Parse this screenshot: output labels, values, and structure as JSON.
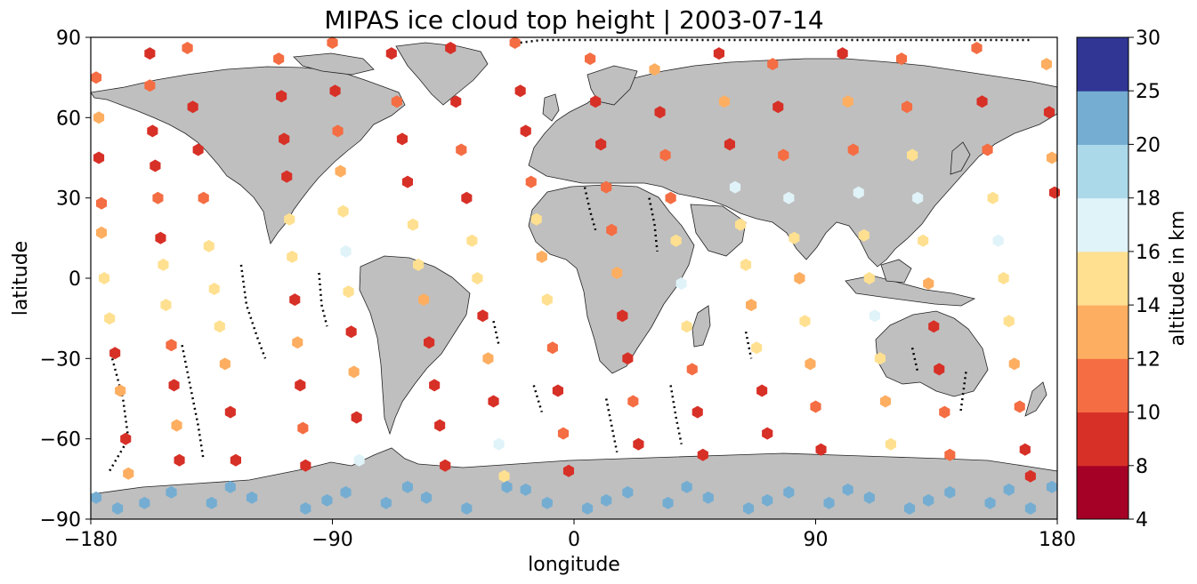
{
  "chart_data": {
    "type": "scatter",
    "title": "MIPAS ice cloud top height | 2003-07-14",
    "xlabel": "longitude",
    "ylabel": "latitude",
    "xlim": [
      -180,
      180
    ],
    "ylim": [
      -90,
      90
    ],
    "xticks": [
      -180,
      -90,
      0,
      90,
      180
    ],
    "yticks": [
      -90,
      -60,
      -30,
      0,
      30,
      60,
      90
    ],
    "xtick_labels": [
      "−180",
      "−90",
      "0",
      "90",
      "180"
    ],
    "ytick_labels": [
      "−90",
      "−60",
      "−30",
      "0",
      "30",
      "60",
      "90"
    ],
    "map_background": "world land masses in grey (#bfbfbf) with coastlines",
    "colorbar": {
      "label": "altitude in km",
      "boundaries": [
        4,
        8,
        10,
        12,
        14,
        16,
        18,
        20,
        25,
        30
      ],
      "tick_labels": [
        "4",
        "8",
        "10",
        "12",
        "14",
        "16",
        "18",
        "20",
        "25",
        "30"
      ],
      "colors": [
        "#a50026",
        "#d73027",
        "#f46d43",
        "#fdae61",
        "#fee090",
        "#e0f3f8",
        "#abd9e9",
        "#74add1",
        "#313695"
      ]
    },
    "series": [
      {
        "kind": "cloud_top_hexagons",
        "points": [
          [
            -178,
            75,
            11
          ],
          [
            -177,
            60,
            12
          ],
          [
            -177,
            45,
            8
          ],
          [
            -176,
            28,
            11
          ],
          [
            -176,
            17,
            12
          ],
          [
            -175,
            0,
            15
          ],
          [
            -173,
            -15,
            15
          ],
          [
            -171,
            -28,
            8
          ],
          [
            -169,
            -42,
            13
          ],
          [
            -167,
            -60,
            8
          ],
          [
            -166,
            -73,
            12
          ],
          [
            -158,
            84,
            8
          ],
          [
            -158,
            72,
            11
          ],
          [
            -157,
            55,
            8
          ],
          [
            -156,
            42,
            9
          ],
          [
            -155,
            30,
            11
          ],
          [
            -154,
            15,
            8
          ],
          [
            -153,
            5,
            15
          ],
          [
            -152,
            -10,
            14
          ],
          [
            -150,
            -25,
            10
          ],
          [
            -149,
            -40,
            9
          ],
          [
            -148,
            -55,
            12
          ],
          [
            -147,
            -68,
            8
          ],
          [
            -144,
            86,
            11
          ],
          [
            -142,
            64,
            8
          ],
          [
            -140,
            48,
            9
          ],
          [
            -138,
            30,
            11
          ],
          [
            -136,
            12,
            15
          ],
          [
            -134,
            -4,
            15
          ],
          [
            -132,
            -18,
            14
          ],
          [
            -130,
            -32,
            12
          ],
          [
            -128,
            -50,
            9
          ],
          [
            -126,
            -68,
            8
          ],
          [
            -110,
            82,
            11
          ],
          [
            -109,
            68,
            8
          ],
          [
            -108,
            52,
            9
          ],
          [
            -107,
            38,
            8
          ],
          [
            -106,
            22,
            15
          ],
          [
            -105,
            8,
            15
          ],
          [
            -104,
            -8,
            8
          ],
          [
            -103,
            -24,
            12
          ],
          [
            -102,
            -40,
            9
          ],
          [
            -101,
            -56,
            10
          ],
          [
            -100,
            -70,
            8
          ],
          [
            -90,
            88,
            10
          ],
          [
            -89,
            70,
            8
          ],
          [
            -88,
            55,
            11
          ],
          [
            -87,
            40,
            12
          ],
          [
            -86,
            25,
            15
          ],
          [
            -85,
            10,
            17
          ],
          [
            -84,
            -5,
            14
          ],
          [
            -83,
            -20,
            8
          ],
          [
            -82,
            -35,
            12
          ],
          [
            -81,
            -52,
            9
          ],
          [
            -80,
            -68,
            16
          ],
          [
            -68,
            84,
            8
          ],
          [
            -66,
            66,
            11
          ],
          [
            -64,
            52,
            8
          ],
          [
            -62,
            36,
            9
          ],
          [
            -60,
            20,
            15
          ],
          [
            -58,
            5,
            15
          ],
          [
            -56,
            -8,
            13
          ],
          [
            -54,
            -24,
            8
          ],
          [
            -52,
            -40,
            8
          ],
          [
            -50,
            -55,
            9
          ],
          [
            -48,
            -70,
            8
          ],
          [
            -46,
            86,
            8
          ],
          [
            -44,
            66,
            9
          ],
          [
            -42,
            48,
            10
          ],
          [
            -40,
            30,
            8
          ],
          [
            -38,
            14,
            15
          ],
          [
            -36,
            0,
            14
          ],
          [
            -34,
            -14,
            8
          ],
          [
            -32,
            -30,
            12
          ],
          [
            -30,
            -46,
            9
          ],
          [
            -28,
            -62,
            16
          ],
          [
            -26,
            -74,
            15
          ],
          [
            -22,
            88,
            11
          ],
          [
            -20,
            70,
            9
          ],
          [
            -18,
            55,
            8
          ],
          [
            -16,
            36,
            10
          ],
          [
            -14,
            22,
            15
          ],
          [
            -12,
            8,
            12
          ],
          [
            -10,
            -8,
            14
          ],
          [
            -8,
            -26,
            10
          ],
          [
            -6,
            -42,
            8
          ],
          [
            -4,
            -58,
            10
          ],
          [
            -2,
            -72,
            8
          ],
          [
            6,
            82,
            11
          ],
          [
            8,
            66,
            8
          ],
          [
            10,
            50,
            9
          ],
          [
            12,
            34,
            10
          ],
          [
            14,
            18,
            11
          ],
          [
            16,
            2,
            12
          ],
          [
            18,
            -14,
            9
          ],
          [
            20,
            -30,
            8
          ],
          [
            22,
            -46,
            10
          ],
          [
            24,
            -62,
            8
          ],
          [
            30,
            78,
            12
          ],
          [
            32,
            62,
            8
          ],
          [
            34,
            46,
            10
          ],
          [
            36,
            30,
            11
          ],
          [
            38,
            14,
            15
          ],
          [
            40,
            -2,
            16
          ],
          [
            42,
            -18,
            14
          ],
          [
            44,
            -34,
            11
          ],
          [
            46,
            -50,
            8
          ],
          [
            48,
            -66,
            9
          ],
          [
            54,
            84,
            9
          ],
          [
            56,
            66,
            12
          ],
          [
            58,
            50,
            9
          ],
          [
            60,
            34,
            17
          ],
          [
            62,
            20,
            15
          ],
          [
            64,
            5,
            14
          ],
          [
            66,
            -10,
            13
          ],
          [
            68,
            -26,
            14
          ],
          [
            70,
            -42,
            9
          ],
          [
            72,
            -58,
            8
          ],
          [
            74,
            80,
            10
          ],
          [
            76,
            64,
            8
          ],
          [
            78,
            46,
            10
          ],
          [
            80,
            30,
            16
          ],
          [
            82,
            15,
            15
          ],
          [
            84,
            0,
            12
          ],
          [
            86,
            -16,
            15
          ],
          [
            88,
            -32,
            13
          ],
          [
            90,
            -48,
            10
          ],
          [
            92,
            -64,
            9
          ],
          [
            100,
            84,
            8
          ],
          [
            102,
            66,
            12
          ],
          [
            104,
            48,
            10
          ],
          [
            106,
            32,
            17
          ],
          [
            108,
            16,
            14
          ],
          [
            110,
            0,
            15
          ],
          [
            112,
            -14,
            16
          ],
          [
            114,
            -30,
            14
          ],
          [
            116,
            -46,
            12
          ],
          [
            118,
            -62,
            15
          ],
          [
            122,
            82,
            11
          ],
          [
            124,
            64,
            10
          ],
          [
            126,
            46,
            15
          ],
          [
            128,
            30,
            16
          ],
          [
            130,
            14,
            15
          ],
          [
            132,
            -2,
            12
          ],
          [
            134,
            -18,
            8
          ],
          [
            136,
            -34,
            8
          ],
          [
            138,
            -50,
            10
          ],
          [
            140,
            -66,
            11
          ],
          [
            150,
            86,
            11
          ],
          [
            152,
            66,
            8
          ],
          [
            154,
            48,
            11
          ],
          [
            156,
            30,
            14
          ],
          [
            158,
            14,
            16
          ],
          [
            160,
            0,
            15
          ],
          [
            162,
            -16,
            14
          ],
          [
            164,
            -32,
            12
          ],
          [
            166,
            -48,
            10
          ],
          [
            168,
            -64,
            8
          ],
          [
            170,
            -74,
            9
          ],
          [
            176,
            80,
            12
          ],
          [
            177,
            62,
            8
          ],
          [
            178,
            45,
            12
          ],
          [
            179,
            32,
            8
          ]
        ]
      },
      {
        "kind": "antarctic_high_clouds",
        "points": [
          [
            -178,
            -82,
            22
          ],
          [
            -170,
            -86,
            22
          ],
          [
            -150,
            -80,
            22
          ],
          [
            -135,
            -84,
            22
          ],
          [
            -120,
            -82,
            22
          ],
          [
            -100,
            -86,
            22
          ],
          [
            -85,
            -80,
            22
          ],
          [
            -70,
            -84,
            22
          ],
          [
            -55,
            -82,
            22
          ],
          [
            -40,
            -86,
            22
          ],
          [
            -25,
            -78,
            22
          ],
          [
            -10,
            -84,
            22
          ],
          [
            5,
            -86,
            22
          ],
          [
            20,
            -80,
            22
          ],
          [
            35,
            -84,
            22
          ],
          [
            50,
            -82,
            22
          ],
          [
            65,
            -86,
            22
          ],
          [
            80,
            -80,
            22
          ],
          [
            95,
            -84,
            22
          ],
          [
            110,
            -82,
            22
          ],
          [
            125,
            -86,
            22
          ],
          [
            140,
            -80,
            22
          ],
          [
            155,
            -84,
            22
          ],
          [
            170,
            -86,
            22
          ],
          [
            -160,
            -84,
            22
          ],
          [
            -128,
            -78,
            22
          ],
          [
            -92,
            -83,
            22
          ],
          [
            -62,
            -78,
            22
          ],
          [
            -18,
            -79,
            22
          ],
          [
            12,
            -83,
            22
          ],
          [
            42,
            -78,
            22
          ],
          [
            72,
            -83,
            22
          ],
          [
            102,
            -79,
            22
          ],
          [
            132,
            -83,
            22
          ],
          [
            162,
            -79,
            22
          ],
          [
            178,
            -78,
            22
          ]
        ]
      },
      {
        "kind": "no_cloud_tracks",
        "paths": [
          [
            [
              -172,
              -30
            ],
            [
              -168,
              -45
            ],
            [
              -166,
              -60
            ],
            [
              -173,
              -72
            ]
          ],
          [
            [
              -146,
              -25
            ],
            [
              -143,
              -40
            ],
            [
              -140,
              -55
            ],
            [
              -138,
              -68
            ]
          ],
          [
            [
              -124,
              5
            ],
            [
              -122,
              -10
            ],
            [
              -118,
              -22
            ],
            [
              -115,
              -30
            ]
          ],
          [
            [
              -95,
              2
            ],
            [
              -94,
              -10
            ],
            [
              -92,
              -18
            ]
          ],
          [
            [
              -30,
              -16
            ],
            [
              -28,
              -25
            ]
          ],
          [
            [
              -15,
              -40
            ],
            [
              -12,
              -50
            ]
          ],
          [
            [
              4,
              34
            ],
            [
              6,
              25
            ],
            [
              8,
              18
            ]
          ],
          [
            [
              28,
              30
            ],
            [
              30,
              20
            ],
            [
              31,
              10
            ]
          ],
          [
            [
              12,
              -45
            ],
            [
              14,
              -55
            ],
            [
              16,
              -65
            ]
          ],
          [
            [
              36,
              -40
            ],
            [
              38,
              -52
            ],
            [
              40,
              -62
            ]
          ],
          [
            [
              64,
              -20
            ],
            [
              66,
              -30
            ]
          ],
          [
            [
              126,
              -26
            ],
            [
              128,
              -35
            ]
          ],
          [
            [
              146,
              -35
            ],
            [
              144,
              -50
            ]
          ],
          [
            [
              -20,
              88
            ],
            [
              -12,
              89
            ],
            [
              0,
              89
            ],
            [
              20,
              89
            ],
            [
              60,
              89
            ],
            [
              120,
              89
            ],
            [
              170,
              89
            ]
          ]
        ]
      }
    ]
  }
}
